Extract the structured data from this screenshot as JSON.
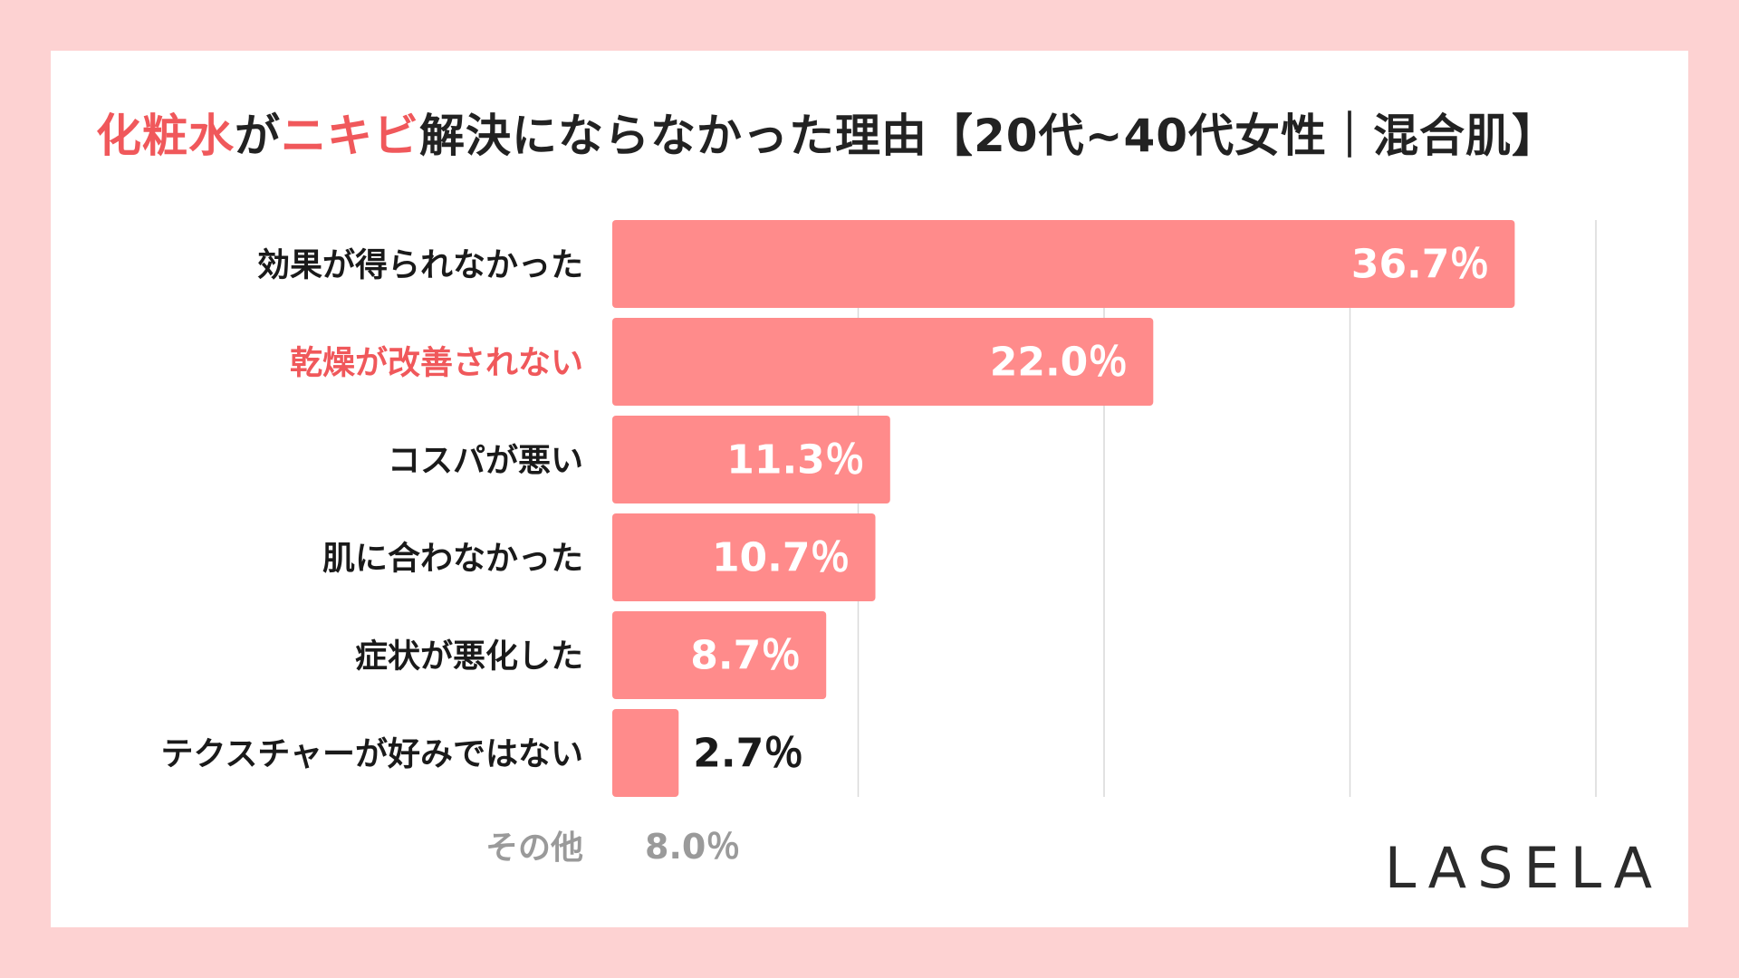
{
  "title": {
    "parts": [
      {
        "text": "化粧水",
        "highlight": true
      },
      {
        "text": "が",
        "highlight": false
      },
      {
        "text": "ニキビ",
        "highlight": true
      },
      {
        "text": "解決にならなかった理由【20代~40代女性｜混合肌】",
        "highlight": false
      }
    ]
  },
  "colors": {
    "bar": "#ff8b8b",
    "highlight_text": "#f0585b",
    "label_text": "#1a1a1a",
    "muted_text": "#9a9a9a",
    "background": "#fdd2d2",
    "grid": "#d9d9d9"
  },
  "chart_data": {
    "type": "bar",
    "orientation": "horizontal",
    "categories": [
      "効果が得られなかった",
      "乾燥が改善されない",
      "コスパが悪い",
      "肌に合わなかった",
      "症状が悪化した",
      "テクスチャーが好みではない"
    ],
    "values": [
      36.7,
      22.0,
      11.3,
      10.7,
      8.7,
      2.7
    ],
    "value_labels": [
      "36.7％",
      "22.0％",
      "11.3％",
      "10.7％",
      "8.7％",
      "2.7％"
    ],
    "highlighted_category": "乾燥が改善されない",
    "xlim": [
      0,
      40
    ],
    "gridlines": [
      0,
      10,
      20,
      30,
      40
    ],
    "other": {
      "label": "その他",
      "value": 8.0,
      "value_label": "8.0％"
    }
  },
  "brand": {
    "logo_text": "LASELA"
  }
}
